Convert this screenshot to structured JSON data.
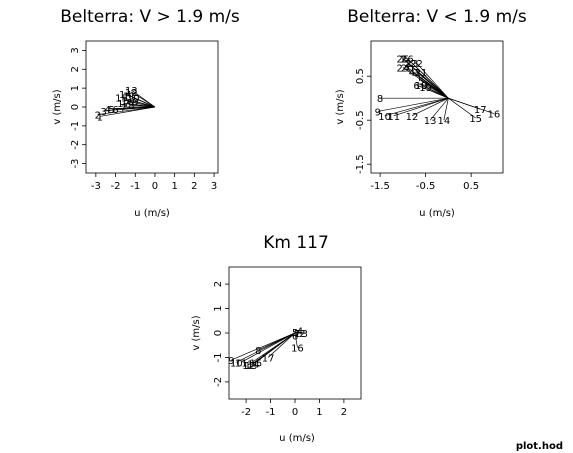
{
  "footer": "plot.hod",
  "chart_data": [
    {
      "type": "line",
      "title": "Belterra: V > 1.9 m/s",
      "xlabel": "u (m/s)",
      "ylabel": "v (m/s)",
      "xlim": [
        -3.5,
        3.2
      ],
      "ylim": [
        -3.5,
        3.5
      ],
      "xticks": [
        -3,
        -2,
        -1,
        0,
        1,
        2,
        3
      ],
      "yticks": [
        -3,
        -2,
        -1,
        0,
        1,
        2,
        3
      ],
      "grid": false,
      "hodograph": [
        {
          "label": "1",
          "u": -2.8,
          "v": -0.5
        },
        {
          "label": "2",
          "u": -2.9,
          "v": -0.4
        },
        {
          "label": "3",
          "u": -2.6,
          "v": -0.2
        },
        {
          "label": "4",
          "u": -2.4,
          "v": -0.1
        },
        {
          "label": "5",
          "u": -2.2,
          "v": -0.1
        },
        {
          "label": "6",
          "u": -2.0,
          "v": -0.1
        },
        {
          "label": "7",
          "u": -1.6,
          "v": 0.0
        },
        {
          "label": "8",
          "u": -1.2,
          "v": 0.1
        },
        {
          "label": "9",
          "u": -1.0,
          "v": 0.3
        },
        {
          "label": "10",
          "u": -1.1,
          "v": 0.5
        },
        {
          "label": "11",
          "u": -1.3,
          "v": 0.6
        },
        {
          "label": "12",
          "u": -1.2,
          "v": 0.8
        },
        {
          "label": "13",
          "u": -1.2,
          "v": 0.9
        },
        {
          "label": "14",
          "u": -1.5,
          "v": 0.7
        },
        {
          "label": "15",
          "u": -1.7,
          "v": 0.5
        },
        {
          "label": "16",
          "u": -1.4,
          "v": 0.3
        },
        {
          "label": "17",
          "u": -1.6,
          "v": 0.2
        }
      ]
    },
    {
      "type": "line",
      "title": "Belterra: V < 1.9 m/s",
      "xlabel": "u (m/s)",
      "ylabel": "v (m/s)",
      "xlim": [
        -1.7,
        1.2
      ],
      "ylim": [
        -1.7,
        1.3
      ],
      "xticks": [
        -1.5,
        -0.5,
        0.5
      ],
      "xtick_labels": [
        "-1.5",
        "-0.5",
        "0.5"
      ],
      "yticks": [
        -1.5,
        -0.5,
        0.5
      ],
      "ytick_labels": [
        "-1.5",
        "-0.5",
        "0.5"
      ],
      "grid": false,
      "hodograph": [
        {
          "label": "1",
          "u": -1.0,
          "v": 0.9
        },
        {
          "label": "2",
          "u": -0.9,
          "v": 0.8
        },
        {
          "label": "3",
          "u": -0.7,
          "v": 0.6
        },
        {
          "label": "4",
          "u": -0.8,
          "v": 0.6
        },
        {
          "label": "5",
          "u": -0.6,
          "v": 0.4
        },
        {
          "label": "6",
          "u": -0.7,
          "v": 0.3
        },
        {
          "label": "7",
          "u": -0.5,
          "v": 0.3
        },
        {
          "label": "8",
          "u": -1.5,
          "v": 0.0
        },
        {
          "label": "9",
          "u": -1.55,
          "v": -0.3
        },
        {
          "label": "10",
          "u": -1.4,
          "v": -0.4
        },
        {
          "label": "11",
          "u": -1.2,
          "v": -0.4
        },
        {
          "label": "12",
          "u": -0.8,
          "v": -0.4
        },
        {
          "label": "13",
          "u": -0.4,
          "v": -0.5
        },
        {
          "label": "14",
          "u": -0.1,
          "v": -0.5
        },
        {
          "label": "15",
          "u": 0.6,
          "v": -0.45
        },
        {
          "label": "16",
          "u": 1.0,
          "v": -0.35
        },
        {
          "label": "17",
          "u": 0.7,
          "v": -0.25
        },
        {
          "label": "18",
          "u": -0.6,
          "v": 0.3
        },
        {
          "label": "19",
          "u": -0.5,
          "v": 0.25
        },
        {
          "label": "20",
          "u": -0.9,
          "v": 0.7
        },
        {
          "label": "21",
          "u": -0.6,
          "v": 0.6
        },
        {
          "label": "22",
          "u": -0.7,
          "v": 0.8
        },
        {
          "label": "23",
          "u": -0.8,
          "v": 0.8
        },
        {
          "label": "24",
          "u": -1.0,
          "v": 0.7
        },
        {
          "label": "25",
          "u": -1.0,
          "v": 0.9
        },
        {
          "label": "26",
          "u": -0.9,
          "v": 0.9
        }
      ]
    },
    {
      "type": "line",
      "title": "Km 117",
      "xlabel": "u (m/s)",
      "ylabel": "v (m/s)",
      "xlim": [
        -2.7,
        2.7
      ],
      "ylim": [
        -2.7,
        2.7
      ],
      "xticks": [
        -2,
        -1,
        0,
        1,
        2
      ],
      "yticks": [
        -2,
        -1,
        0,
        1,
        2
      ],
      "grid": false,
      "hodograph": [
        {
          "label": "1",
          "u": 0.1,
          "v": 0.0
        },
        {
          "label": "2",
          "u": 0.3,
          "v": 0.0
        },
        {
          "label": "3",
          "u": 0.4,
          "v": 0.0
        },
        {
          "label": "4",
          "u": 0.2,
          "v": 0.1
        },
        {
          "label": "5",
          "u": 0.0,
          "v": 0.05
        },
        {
          "label": "6",
          "u": 0.0,
          "v": -0.1
        },
        {
          "label": "7",
          "u": 0.1,
          "v": 0.0
        },
        {
          "label": "8",
          "u": -1.5,
          "v": -0.7
        },
        {
          "label": "9",
          "u": -2.6,
          "v": -1.1
        },
        {
          "label": "10",
          "u": -2.4,
          "v": -1.2
        },
        {
          "label": "11",
          "u": -2.2,
          "v": -1.2
        },
        {
          "label": "12",
          "u": -1.9,
          "v": -1.3
        },
        {
          "label": "13",
          "u": -1.8,
          "v": -1.3
        },
        {
          "label": "14",
          "u": -1.7,
          "v": -1.25
        },
        {
          "label": "15",
          "u": -1.6,
          "v": -1.2
        },
        {
          "label": "16",
          "u": 0.1,
          "v": -0.6
        },
        {
          "label": "17",
          "u": -1.1,
          "v": -1.0
        }
      ]
    }
  ]
}
